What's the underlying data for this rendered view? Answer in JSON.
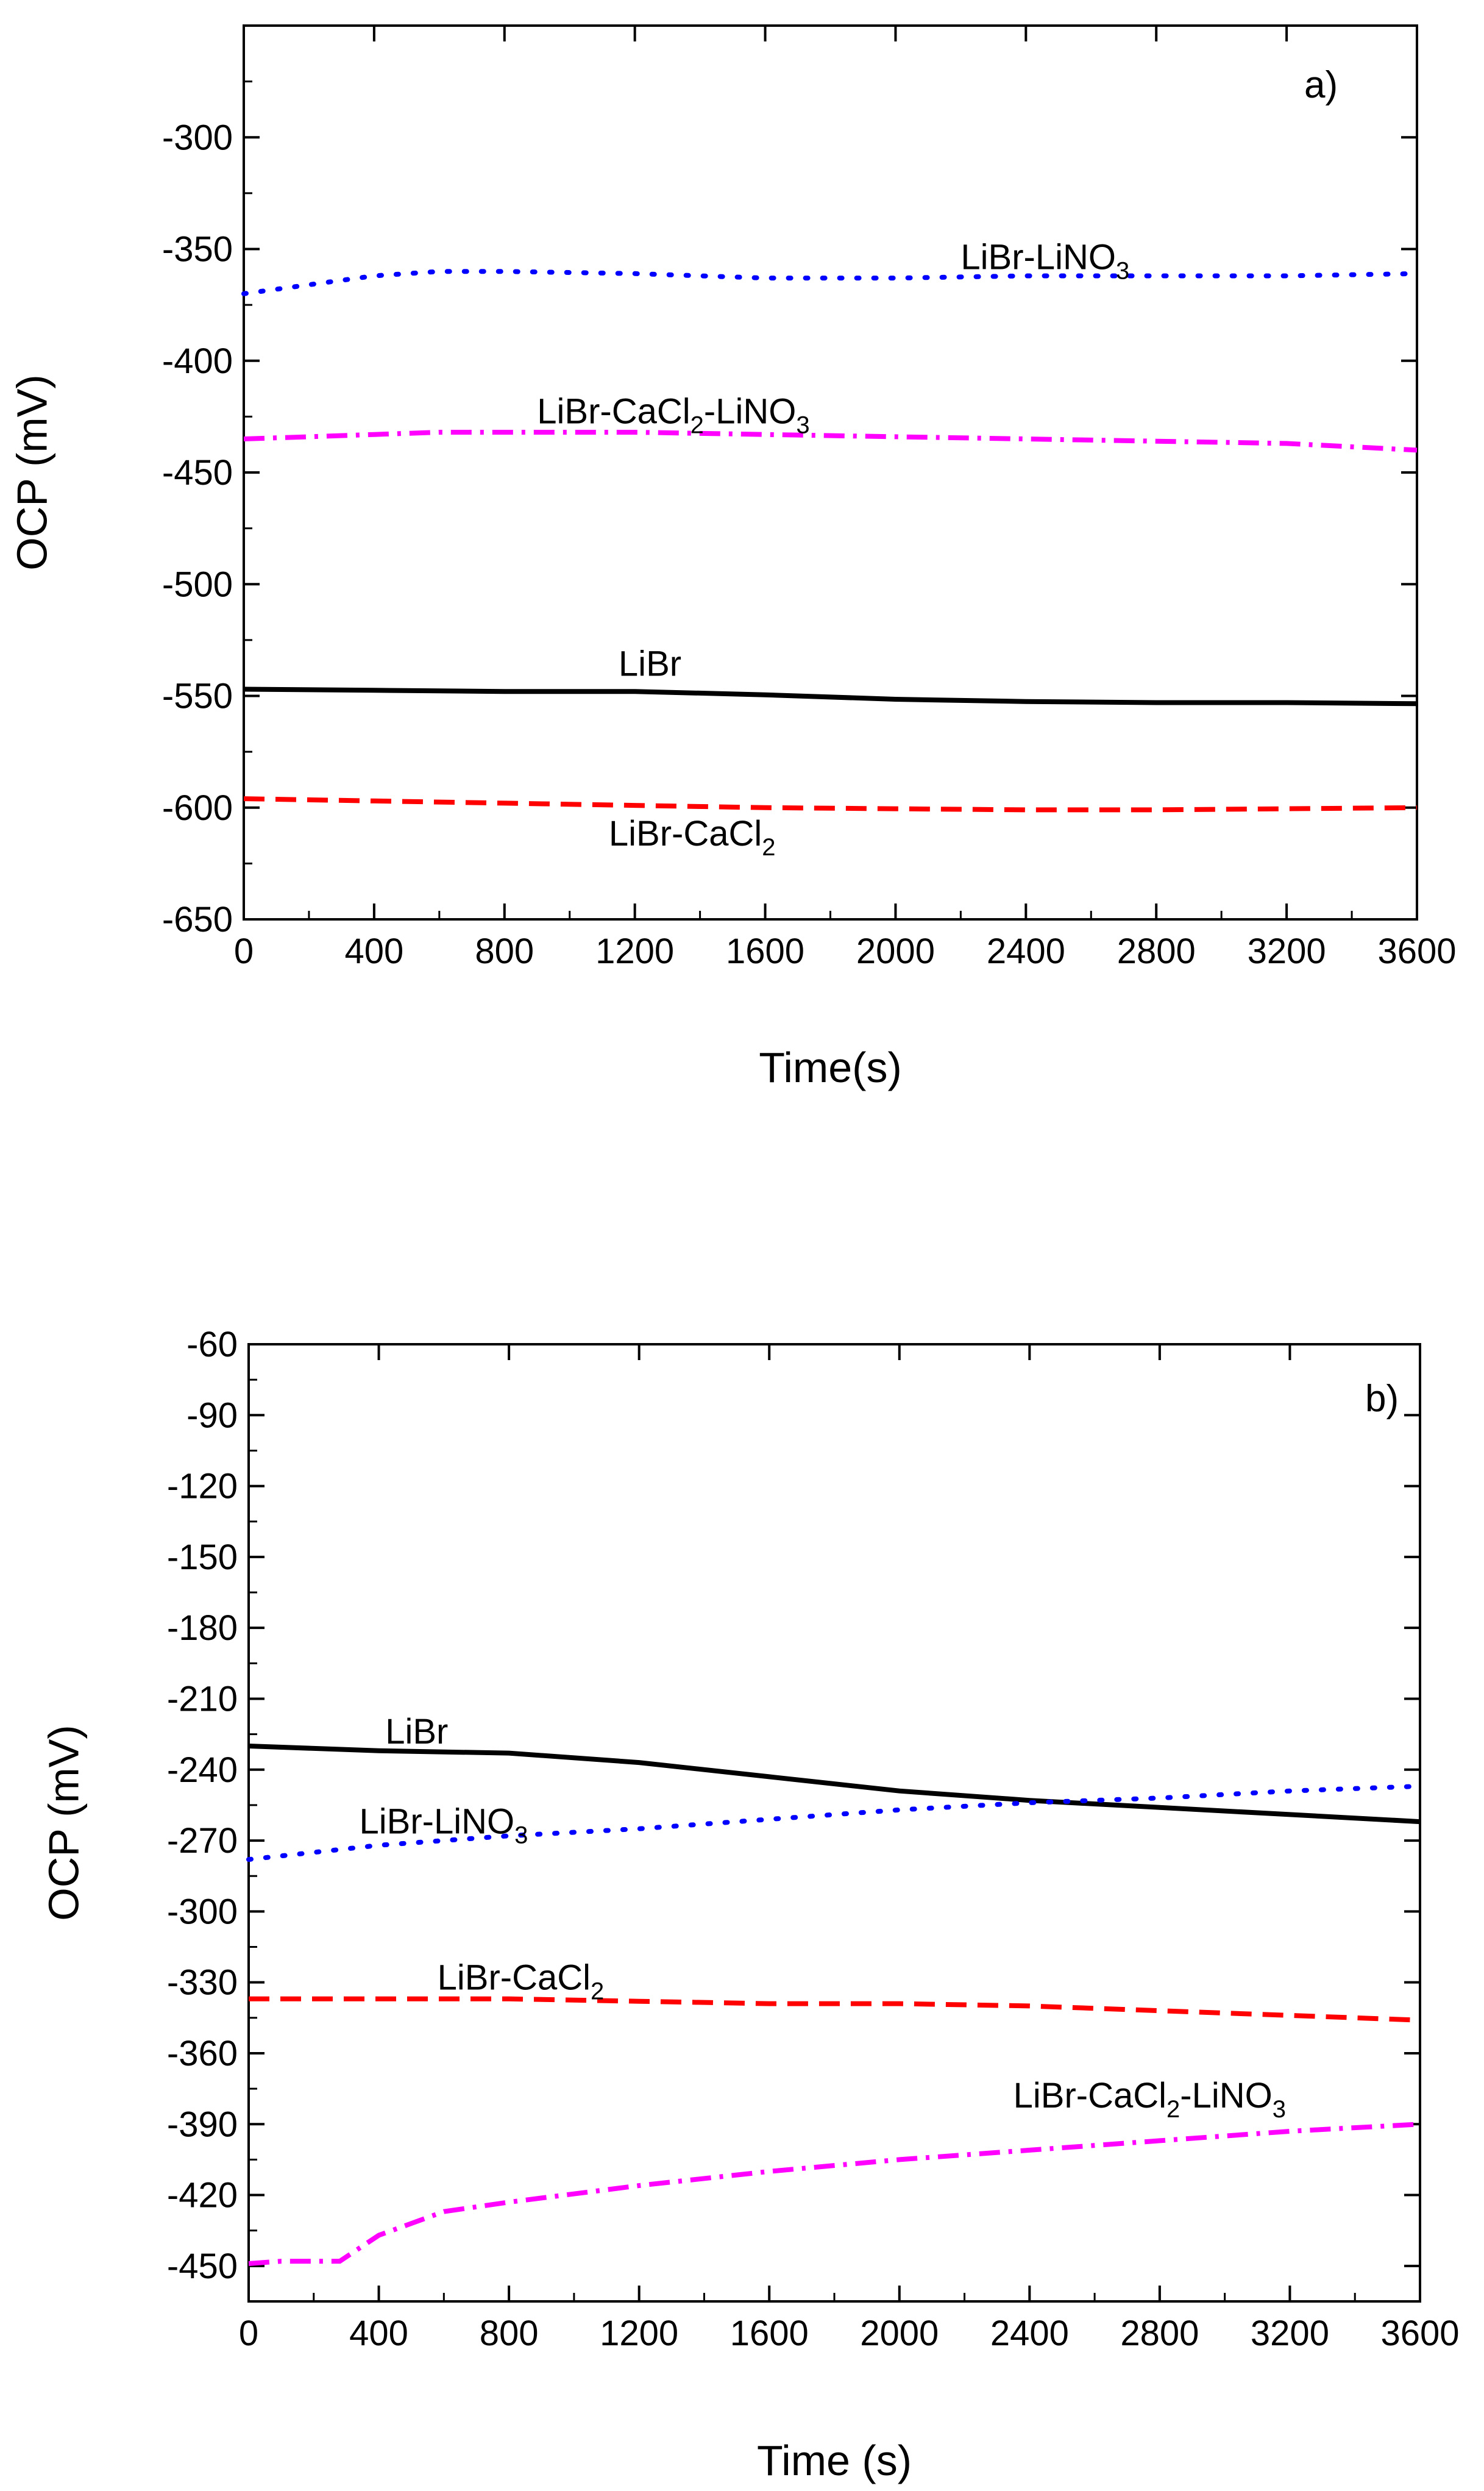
{
  "chart_data": [
    {
      "type": "line",
      "panel_label": "a)",
      "xlabel": "Time(s)",
      "ylabel": "OCP (mV)",
      "xlim": [
        0,
        3600
      ],
      "ylim": [
        -650,
        -250
      ],
      "xticks": [
        0,
        400,
        800,
        1200,
        1600,
        2000,
        2400,
        2800,
        3200,
        3600
      ],
      "yticks": [
        -650,
        -600,
        -550,
        -500,
        -450,
        -400,
        -350,
        -300
      ],
      "grid": false,
      "series": [
        {
          "name": "LiBr-LiNO3",
          "label_main": "LiBr-LiNO",
          "label_sub": "3",
          "label_tail": "",
          "color": "#0000ff",
          "dash": "dot",
          "x": [
            0,
            200,
            400,
            600,
            800,
            1200,
            1600,
            2000,
            2400,
            2800,
            3200,
            3600
          ],
          "y": [
            -370,
            -366,
            -362,
            -360,
            -360,
            -361,
            -363,
            -363,
            -362,
            -362,
            -362,
            -361
          ],
          "label_at": [
            2200,
            -359
          ]
        },
        {
          "name": "LiBr-CaCl2-LiNO3",
          "label_main": "LiBr-CaCl",
          "label_sub": "2",
          "label_tail": "-LiNO",
          "label_sub2": "3",
          "color": "#ff00ff",
          "dash": "dashdot",
          "x": [
            0,
            200,
            400,
            600,
            800,
            1200,
            1600,
            2000,
            2400,
            2800,
            3200,
            3600
          ],
          "y": [
            -435,
            -434,
            -433,
            -432,
            -432,
            -432,
            -433,
            -434,
            -435,
            -436,
            -437,
            -440
          ],
          "label_at": [
            900,
            -428
          ]
        },
        {
          "name": "LiBr",
          "label_main": "LiBr",
          "label_sub": "",
          "label_tail": "",
          "color": "#000000",
          "dash": "solid",
          "x": [
            0,
            400,
            800,
            1200,
            1600,
            2000,
            2400,
            2800,
            3200,
            3600
          ],
          "y": [
            -547,
            -547.5,
            -548,
            -548,
            -549.5,
            -551.5,
            -552.5,
            -553,
            -553,
            -553.5
          ],
          "label_at": [
            1150,
            -541
          ]
        },
        {
          "name": "LiBr-CaCl2",
          "label_main": "LiBr-CaCl",
          "label_sub": "2",
          "label_tail": "",
          "color": "#ff0000",
          "dash": "dash",
          "x": [
            0,
            400,
            800,
            1200,
            1600,
            2000,
            2400,
            2800,
            3200,
            3600
          ],
          "y": [
            -596,
            -597,
            -598,
            -599,
            -600,
            -600.5,
            -601,
            -601,
            -600.5,
            -600
          ],
          "label_at": [
            1120,
            -617
          ]
        }
      ]
    },
    {
      "type": "line",
      "panel_label": "b)",
      "xlabel": "Time (s)",
      "ylabel": "OCP (mV)",
      "xlim": [
        0,
        3600
      ],
      "ylim": [
        -465,
        -60
      ],
      "xticks": [
        0,
        400,
        800,
        1200,
        1600,
        2000,
        2400,
        2800,
        3200,
        3600
      ],
      "yticks": [
        -450,
        -420,
        -390,
        -360,
        -330,
        -300,
        -270,
        -240,
        -210,
        -180,
        -150,
        -120,
        -90,
        -60
      ],
      "grid": false,
      "series": [
        {
          "name": "LiBr",
          "label_main": "LiBr",
          "label_sub": "",
          "label_tail": "",
          "color": "#000000",
          "dash": "solid",
          "x": [
            0,
            400,
            800,
            1200,
            1600,
            2000,
            2400,
            2800,
            3200,
            3600
          ],
          "y": [
            -230,
            -232,
            -233,
            -237,
            -243,
            -249,
            -253,
            -256,
            -259,
            -262
          ],
          "label_at": [
            420,
            -229
          ]
        },
        {
          "name": "LiBr-LiNO3",
          "label_main": "LiBr-LiNO",
          "label_sub": "3",
          "label_tail": "",
          "color": "#0000ff",
          "dash": "dot",
          "x": [
            0,
            400,
            800,
            1200,
            1600,
            2000,
            2400,
            2800,
            3200,
            3600
          ],
          "y": [
            -278,
            -272,
            -268,
            -265,
            -261,
            -257,
            -254,
            -252,
            -249,
            -247
          ],
          "label_at": [
            340,
            -267
          ]
        },
        {
          "name": "LiBr-CaCl2",
          "label_main": "LiBr-CaCl",
          "label_sub": "2",
          "label_tail": "",
          "color": "#ff0000",
          "dash": "dash",
          "x": [
            0,
            400,
            800,
            1200,
            1600,
            2000,
            2400,
            2800,
            3200,
            3600
          ],
          "y": [
            -337,
            -337,
            -337,
            -338,
            -339,
            -339,
            -340,
            -342,
            -344,
            -346
          ],
          "label_at": [
            580,
            -333
          ]
        },
        {
          "name": "LiBr-CaCl2-LiNO3",
          "label_main": "LiBr-CaCl",
          "label_sub": "2",
          "label_tail": "-LiNO",
          "label_sub2": "3",
          "color": "#ff00ff",
          "dash": "dashdot",
          "x": [
            0,
            100,
            200,
            280,
            400,
            600,
            800,
            1200,
            1600,
            2000,
            2400,
            2800,
            3200,
            3600
          ],
          "y": [
            -449,
            -448,
            -448,
            -448,
            -437,
            -427,
            -423,
            -416,
            -410,
            -405,
            -401,
            -397,
            -393,
            -390
          ],
          "label_at": [
            2350,
            -383
          ]
        }
      ]
    }
  ]
}
